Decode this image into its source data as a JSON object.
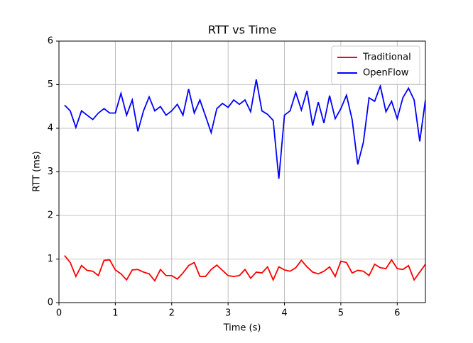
{
  "chart_data": {
    "type": "line",
    "title": "RTT vs Time",
    "xlabel": "Time (s)",
    "ylabel": "RTT (ms)",
    "x": [
      0.1,
      0.2,
      0.3,
      0.4,
      0.5,
      0.6,
      0.7,
      0.8,
      0.9,
      1.0,
      1.1,
      1.2,
      1.3,
      1.4,
      1.5,
      1.6,
      1.7,
      1.8,
      1.9,
      2.0,
      2.1,
      2.2,
      2.3,
      2.4,
      2.5,
      2.6,
      2.7,
      2.8,
      2.9,
      3.0,
      3.1,
      3.2,
      3.3,
      3.4,
      3.5,
      3.6,
      3.7,
      3.8,
      3.9,
      4.0,
      4.1,
      4.2,
      4.3,
      4.4,
      4.5,
      4.6,
      4.7,
      4.8,
      4.9,
      5.0,
      5.1,
      5.2,
      5.3,
      5.4,
      5.5,
      5.6,
      5.7,
      5.8,
      5.9,
      6.0,
      6.1,
      6.2,
      6.3,
      6.4,
      6.5
    ],
    "series": [
      {
        "name": "Traditional",
        "color": "#ff0000",
        "values": [
          1.08,
          0.92,
          0.6,
          0.85,
          0.74,
          0.72,
          0.62,
          0.97,
          0.98,
          0.75,
          0.66,
          0.52,
          0.75,
          0.76,
          0.7,
          0.66,
          0.5,
          0.76,
          0.62,
          0.62,
          0.54,
          0.68,
          0.85,
          0.92,
          0.6,
          0.6,
          0.76,
          0.86,
          0.74,
          0.62,
          0.6,
          0.62,
          0.76,
          0.56,
          0.7,
          0.68,
          0.82,
          0.52,
          0.82,
          0.75,
          0.72,
          0.8,
          0.97,
          0.82,
          0.7,
          0.66,
          0.72,
          0.82,
          0.6,
          0.95,
          0.92,
          0.68,
          0.74,
          0.72,
          0.62,
          0.88,
          0.8,
          0.78,
          0.98,
          0.78,
          0.76,
          0.85,
          0.52,
          0.7,
          0.88
        ]
      },
      {
        "name": "OpenFlow",
        "color": "#0000ff",
        "values": [
          4.53,
          4.4,
          4.02,
          4.4,
          4.3,
          4.2,
          4.35,
          4.45,
          4.35,
          4.35,
          4.8,
          4.3,
          4.65,
          3.93,
          4.4,
          4.72,
          4.4,
          4.5,
          4.3,
          4.4,
          4.55,
          4.3,
          4.9,
          4.35,
          4.65,
          4.28,
          3.9,
          4.45,
          4.57,
          4.48,
          4.65,
          4.55,
          4.65,
          4.38,
          5.12,
          4.4,
          4.32,
          4.18,
          2.84,
          4.3,
          4.4,
          4.82,
          4.42,
          4.86,
          4.06,
          4.6,
          4.12,
          4.75,
          4.22,
          4.45,
          4.76,
          4.2,
          3.17,
          3.68,
          4.7,
          4.62,
          4.97,
          4.38,
          4.62,
          4.22,
          4.7,
          4.92,
          4.65,
          3.7,
          4.65
        ]
      }
    ],
    "xlim": [
      0,
      6.5
    ],
    "ylim": [
      0,
      6
    ],
    "xticks": [
      0,
      1,
      2,
      3,
      4,
      5,
      6
    ],
    "yticks": [
      0,
      1,
      2,
      3,
      4,
      5,
      6
    ],
    "grid": true,
    "legend": "upper right"
  }
}
